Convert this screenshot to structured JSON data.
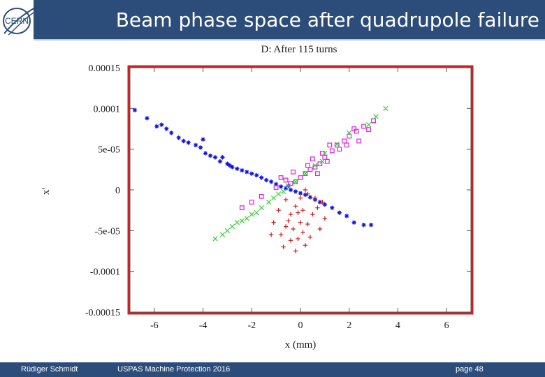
{
  "header": {
    "title": "Beam phase space after quadrupole failure",
    "logo_text": "CERN"
  },
  "footer": {
    "author": "Rüdiger Schmidt",
    "course": "USPAS Machine Protection 2016",
    "page": "page 48"
  },
  "colors": {
    "header_bg": "#2c4d7a",
    "highlight_box": "#cc2222",
    "blue": "#1010e0",
    "magenta": "#e020e0",
    "green": "#30d030",
    "red": "#cc1a1a"
  },
  "chart_data": {
    "type": "scatter",
    "title": "D: After 115 turns",
    "xlabel": "x (mm)",
    "ylabel": "x'",
    "xlim": [
      -7,
      7
    ],
    "ylim": [
      -0.00015,
      0.00015
    ],
    "x_ticks": [
      -6,
      -4,
      -2,
      0,
      2,
      4,
      6
    ],
    "x_tick_labels": [
      "-6",
      "-4",
      "-2",
      "0",
      "2",
      "4",
      "6"
    ],
    "y_ticks": [
      0.00015,
      0.0001,
      5e-05,
      0,
      -5e-05,
      -0.0001,
      -0.00015
    ],
    "y_tick_labels": [
      "0.00015",
      "0.0001",
      "5e-05",
      "0",
      "-5e-05",
      "-0.0001",
      "-0.00015"
    ],
    "grid": false,
    "series": [
      {
        "name": "blue-asterisk",
        "marker": "star",
        "color": "#1010e0",
        "points": [
          [
            -6.8,
            9.8e-05
          ],
          [
            -6.3,
            8.8e-05
          ],
          [
            -5.9,
            7.8e-05
          ],
          [
            -5.7,
            8e-05
          ],
          [
            -5.5,
            7.5e-05
          ],
          [
            -5.3,
            7e-05
          ],
          [
            -5.0,
            6.4e-05
          ],
          [
            -4.8,
            6e-05
          ],
          [
            -4.6,
            5.8e-05
          ],
          [
            -4.3,
            5.5e-05
          ],
          [
            -4.1,
            5.2e-05
          ],
          [
            -3.9,
            4.5e-05
          ],
          [
            -3.7,
            4.2e-05
          ],
          [
            -3.5,
            4e-05
          ],
          [
            -3.3,
            3.5e-05
          ],
          [
            -3.0,
            3.2e-05
          ],
          [
            -2.8,
            2.8e-05
          ],
          [
            -2.6,
            2.6e-05
          ],
          [
            -2.4,
            2.4e-05
          ],
          [
            -2.2,
            2.2e-05
          ],
          [
            -2.0,
            2e-05
          ],
          [
            -1.8,
            1.8e-05
          ],
          [
            -1.6,
            1.5e-05
          ],
          [
            -1.4,
            1.2e-05
          ],
          [
            -1.2,
            1e-05
          ],
          [
            -1.0,
            7e-06
          ],
          [
            -0.8,
            4e-06
          ],
          [
            -0.6,
            2e-06
          ],
          [
            -0.4,
            0.0
          ],
          [
            -0.2,
            -2e-06
          ],
          [
            0.0,
            -4e-06
          ],
          [
            0.2,
            -6e-06
          ],
          [
            0.4,
            -9e-06
          ],
          [
            0.6,
            -1.2e-05
          ],
          [
            0.8,
            -1.5e-05
          ],
          [
            1.0,
            -1.8e-05
          ],
          [
            1.3,
            -2.2e-05
          ],
          [
            1.6,
            -2.8e-05
          ],
          [
            1.9,
            -3.2e-05
          ],
          [
            2.2,
            -4e-05
          ],
          [
            2.6,
            -4.3e-05
          ],
          [
            2.9,
            -4.3e-05
          ],
          [
            -4.0,
            6.2e-05
          ],
          [
            -3.2,
            4e-05
          ],
          [
            -2.9,
            3e-05
          ],
          [
            -0.5,
            5e-06
          ]
        ]
      },
      {
        "name": "magenta-square",
        "marker": "square",
        "color": "#e020e0",
        "points": [
          [
            3.0,
            8.5e-05
          ],
          [
            2.6,
            7.8e-05
          ],
          [
            2.3,
            7.2e-05
          ],
          [
            2.0,
            6.6e-05
          ],
          [
            1.8,
            6e-05
          ],
          [
            1.5,
            5.5e-05
          ],
          [
            1.3,
            4.8e-05
          ],
          [
            1.0,
            4e-05
          ],
          [
            0.8,
            3.2e-05
          ],
          [
            0.6,
            2.8e-05
          ],
          [
            0.4,
            2.5e-05
          ],
          [
            0.2,
            2e-05
          ],
          [
            0.0,
            1.5e-05
          ],
          [
            -0.2,
            1e-05
          ],
          [
            -0.4,
            8e-06
          ],
          [
            -0.6,
            1.2e-05
          ],
          [
            -0.8,
            1.5e-05
          ],
          [
            -2.4,
            -2.2e-05
          ],
          [
            -1.0,
            3e-06
          ],
          [
            -1.6,
            -8e-06
          ],
          [
            -2.0,
            -1.5e-05
          ],
          [
            2.8,
            7.4e-05
          ],
          [
            2.4,
            6e-05
          ],
          [
            1.2,
            5.5e-05
          ],
          [
            0.9,
            4.5e-05
          ],
          [
            0.5,
            3.8e-05
          ],
          [
            1.6,
            5e-05
          ],
          [
            2.2,
            7.5e-05
          ],
          [
            0.3,
            3e-05
          ],
          [
            -0.3,
            2.2e-05
          ],
          [
            1.1,
            3.5e-05
          ],
          [
            1.9,
            5.5e-05
          ],
          [
            0.7,
            2e-05
          ]
        ]
      },
      {
        "name": "green-cross",
        "marker": "cross",
        "color": "#30d030",
        "points": [
          [
            3.5,
            0.0001
          ],
          [
            3.1,
            9e-05
          ],
          [
            2.8,
            8e-05
          ],
          [
            2.0,
            7e-05
          ],
          [
            1.5,
            5.6e-05
          ],
          [
            1.0,
            4.5e-05
          ],
          [
            0.6,
            3e-05
          ],
          [
            0.2,
            2e-05
          ],
          [
            -0.2,
            1e-05
          ],
          [
            -0.5,
            5e-06
          ],
          [
            -0.9,
            -5e-06
          ],
          [
            -1.3,
            -1.5e-05
          ],
          [
            -1.6,
            -2.2e-05
          ],
          [
            -2.0,
            -3e-05
          ],
          [
            -2.4,
            -3.8e-05
          ],
          [
            -2.8,
            -4.5e-05
          ],
          [
            -3.2,
            -5.5e-05
          ],
          [
            -3.5,
            -6e-05
          ],
          [
            -1.8,
            -2.8e-05
          ],
          [
            -2.6,
            -4e-05
          ],
          [
            -1.1,
            -1e-05
          ],
          [
            -0.7,
            -2e-06
          ],
          [
            -3.0,
            -5e-05
          ],
          [
            -2.2,
            -3.5e-05
          ],
          [
            0.9,
            3.5e-05
          ]
        ]
      },
      {
        "name": "red-plus",
        "marker": "plus",
        "color": "#cc1a1a",
        "points": [
          [
            0.2,
            0.0
          ],
          [
            0.0,
            -1e-05
          ],
          [
            -0.2,
            -2e-05
          ],
          [
            -0.4,
            -3e-05
          ],
          [
            -0.6,
            -4.5e-05
          ],
          [
            -0.8,
            -5.5e-05
          ],
          [
            -0.5,
            -3.8e-05
          ],
          [
            -0.3,
            -4.8e-05
          ],
          [
            -0.1,
            -6e-05
          ],
          [
            0.1,
            -5.2e-05
          ],
          [
            0.3,
            -4.2e-05
          ],
          [
            0.5,
            -3e-05
          ],
          [
            0.7,
            -2.2e-05
          ],
          [
            0.9,
            -1.5e-05
          ],
          [
            1.0,
            -3.5e-05
          ],
          [
            -0.9,
            -2.5e-05
          ],
          [
            -1.1,
            -4e-05
          ],
          [
            -0.7,
            -7e-05
          ],
          [
            -0.2,
            -7.5e-05
          ],
          [
            0.0,
            -4e-05
          ],
          [
            0.2,
            -6.8e-05
          ],
          [
            0.4,
            -5.8e-05
          ],
          [
            -0.4,
            -6.2e-05
          ],
          [
            0.6,
            -1e-05
          ],
          [
            -0.1,
            -2.8e-05
          ],
          [
            0.8,
            -4.8e-05
          ],
          [
            -1.2,
            -5.5e-05
          ],
          [
            0.3,
            -5e-06
          ],
          [
            -0.6,
            -1.2e-05
          ],
          [
            0.1,
            -2.5e-05
          ]
        ]
      }
    ]
  }
}
